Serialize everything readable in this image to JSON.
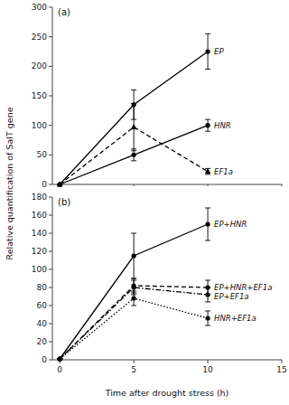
{
  "chart_data": [
    {
      "type": "line",
      "title": "(a)",
      "ylabel": "Relative quantification of SalT gene",
      "x": [
        0,
        5,
        10
      ],
      "xlim": [
        -0.5,
        15
      ],
      "xticks": [
        0,
        5,
        10,
        15
      ],
      "ylim": [
        0,
        300
      ],
      "yticks": [
        0,
        50,
        100,
        150,
        200,
        250,
        300
      ],
      "tick_labels": "y",
      "series": [
        {
          "name": "EP",
          "color": "#000000",
          "marker": "circle",
          "line_style": "solid",
          "values": [
            0,
            135,
            225
          ],
          "errors": [
            0,
            25,
            30
          ]
        },
        {
          "name": "HNR",
          "color": "#000000",
          "marker": "circle",
          "line_style": "solid",
          "values": [
            0,
            50,
            100
          ],
          "errors": [
            0,
            10,
            10
          ]
        },
        {
          "name": "EF1a",
          "color": "#000000",
          "marker": "triangle",
          "line_style": "dashed",
          "values": [
            0,
            97,
            22
          ],
          "errors": [
            0,
            40,
            5
          ]
        }
      ]
    },
    {
      "type": "line",
      "title": "(b)",
      "xlabel": "Time after drought stress (h)",
      "x": [
        0,
        5,
        10
      ],
      "xlim": [
        -0.5,
        15
      ],
      "xticks": [
        0,
        5,
        10,
        15
      ],
      "ylim": [
        0,
        180
      ],
      "yticks": [
        0,
        20,
        40,
        60,
        80,
        100,
        120,
        140,
        160,
        180
      ],
      "series": [
        {
          "name": "EP+HNR",
          "color": "#000000",
          "marker": "circle",
          "line_style": "solid",
          "values": [
            1,
            115,
            150
          ],
          "errors": [
            0,
            25,
            18
          ]
        },
        {
          "name": "EP+HNR+EF1a",
          "color": "#000000",
          "marker": "circle",
          "line_style": "dashed",
          "values": [
            1,
            82,
            80
          ],
          "errors": [
            0,
            8,
            8
          ]
        },
        {
          "name": "EP+EF1a",
          "color": "#000000",
          "marker": "circle",
          "line_style": "dashdot",
          "values": [
            1,
            80,
            72
          ],
          "errors": [
            0,
            8,
            8
          ]
        },
        {
          "name": "HNR+EF1a",
          "color": "#000000",
          "marker": "circle",
          "line_style": "dotted",
          "values": [
            1,
            68,
            46
          ],
          "errors": [
            0,
            8,
            8
          ]
        }
      ]
    }
  ]
}
